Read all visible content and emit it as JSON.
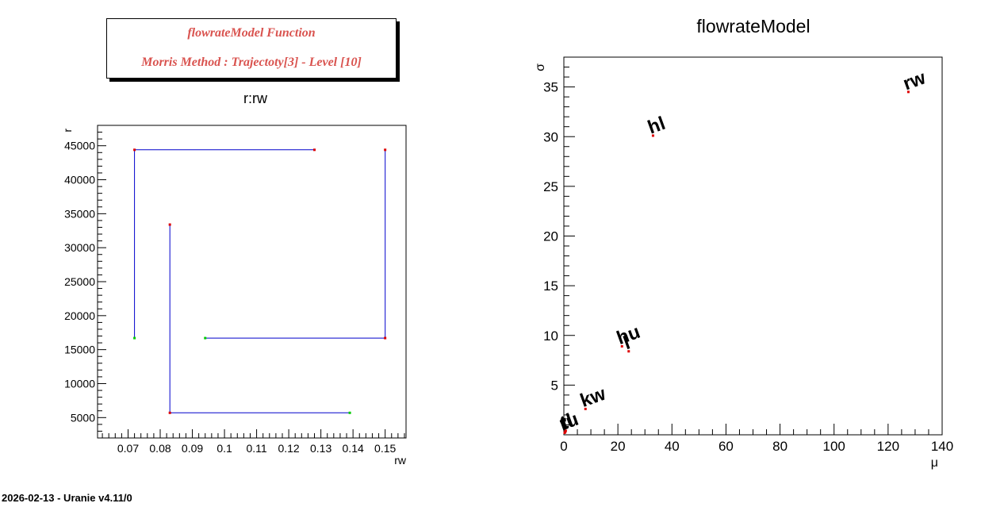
{
  "header": {
    "line1": "flowrateModel Function",
    "line2": "Morris Method :  Trajectoty[3]  - Level [10]"
  },
  "footer": "2026-02-13 - Uranie v4.11/0",
  "chart_data": [
    {
      "type": "line",
      "title": "r:rw",
      "xlabel": "rw",
      "ylabel": "r",
      "xlim": [
        0.0605,
        0.1565
      ],
      "ylim": [
        2000,
        48000
      ],
      "xticks": [
        "0.07",
        "0.08",
        "0.09",
        "0.1",
        "0.11",
        "0.12",
        "0.13",
        "0.14",
        "0.15"
      ],
      "yticks": [
        "5000",
        "10000",
        "15000",
        "20000",
        "25000",
        "30000",
        "35000",
        "40000",
        "45000"
      ],
      "grid": false,
      "line_color": "#0000cc",
      "start_color": "#00cc00",
      "point_color": "#dd0000",
      "trajectories": [
        {
          "points": [
            [
              0.072,
              16700
            ],
            [
              0.072,
              44400
            ],
            [
              0.128,
              44400
            ]
          ]
        },
        {
          "points": [
            [
              0.094,
              16700
            ],
            [
              0.15,
              16700
            ],
            [
              0.15,
              44400
            ]
          ]
        },
        {
          "points": [
            [
              0.139,
              5700
            ],
            [
              0.083,
              5700
            ],
            [
              0.083,
              33400
            ]
          ]
        }
      ]
    },
    {
      "type": "scatter",
      "title": "flowrateModel",
      "xlabel": "μ",
      "ylabel": "σ",
      "xlim": [
        0,
        140
      ],
      "ylim": [
        0,
        38
      ],
      "xticks": [
        "0",
        "20",
        "40",
        "60",
        "80",
        "100",
        "120",
        "140"
      ],
      "yticks": [
        "5",
        "10",
        "15",
        "20",
        "25",
        "30",
        "35"
      ],
      "grid": false,
      "point_color": "#dd0000",
      "points": [
        {
          "label": "rw",
          "x": 127.5,
          "y": 34.5
        },
        {
          "label": "hl",
          "x": 33.0,
          "y": 30.1
        },
        {
          "label": "hu",
          "x": 21.5,
          "y": 8.9
        },
        {
          "label": "l",
          "x": 24.0,
          "y": 8.4
        },
        {
          "label": "kw",
          "x": 8.0,
          "y": 2.6
        },
        {
          "label": "r",
          "x": 0.3,
          "y": 0.2
        },
        {
          "label": "tu",
          "x": 0.5,
          "y": 0.3
        },
        {
          "label": "tl",
          "x": 0.7,
          "y": 0.4
        }
      ]
    }
  ]
}
